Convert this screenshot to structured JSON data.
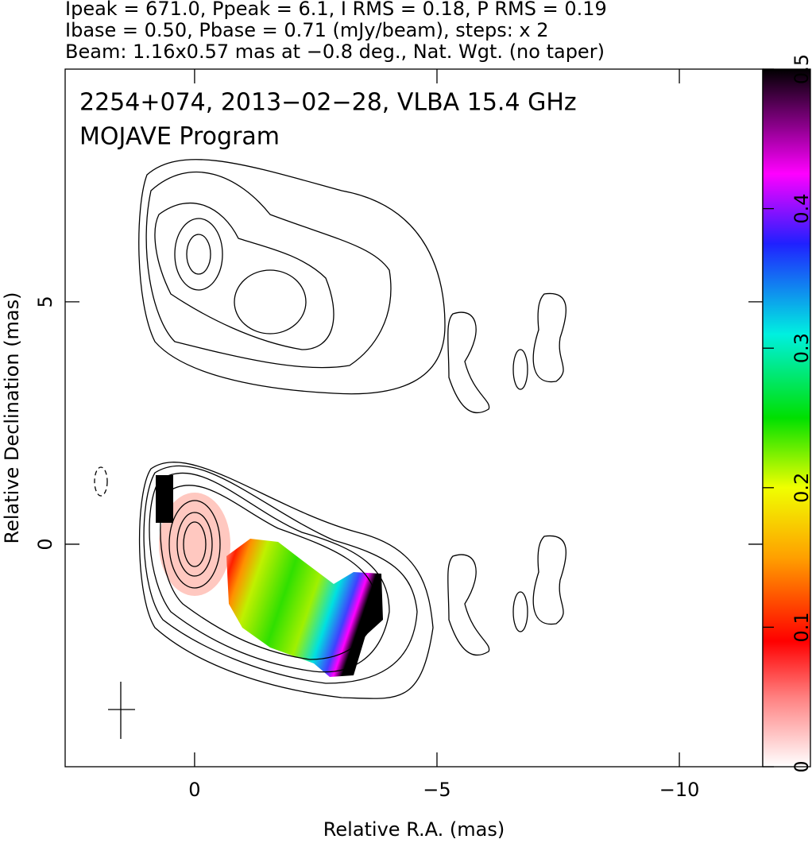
{
  "chart_data": {
    "type": "contour-map",
    "header": [
      "Ipeak = 671.0, Ppeak = 6.1, I RMS = 0.18, P RMS = 0.19",
      "Ibase = 0.50, Pbase = 0.71 (mJy/beam), steps: x 2",
      "Beam: 1.16x0.57 mas at −0.8 deg., Nat. Wgt. (no taper)"
    ],
    "annotations": [
      "2254+074, 2013−02−28, VLBA 15.4 GHz",
      "MOJAVE Program"
    ],
    "xlabel": "Relative R.A. (mas)",
    "ylabel": "Relative Declination (mas)",
    "xlim": [
      2.67,
      -11.72
    ],
    "xticks": [
      0,
      {
        "value": -5,
        "label": "−5"
      },
      {
        "value": -10,
        "label": "−10"
      }
    ],
    "ylim": [
      -4.59,
      9.8
    ],
    "yticks": [
      0,
      5
    ],
    "colorbar": {
      "lim": [
        0,
        0.5
      ],
      "ticks": [
        0,
        0.1,
        0.2,
        0.3,
        0.4,
        0.5
      ]
    }
  }
}
